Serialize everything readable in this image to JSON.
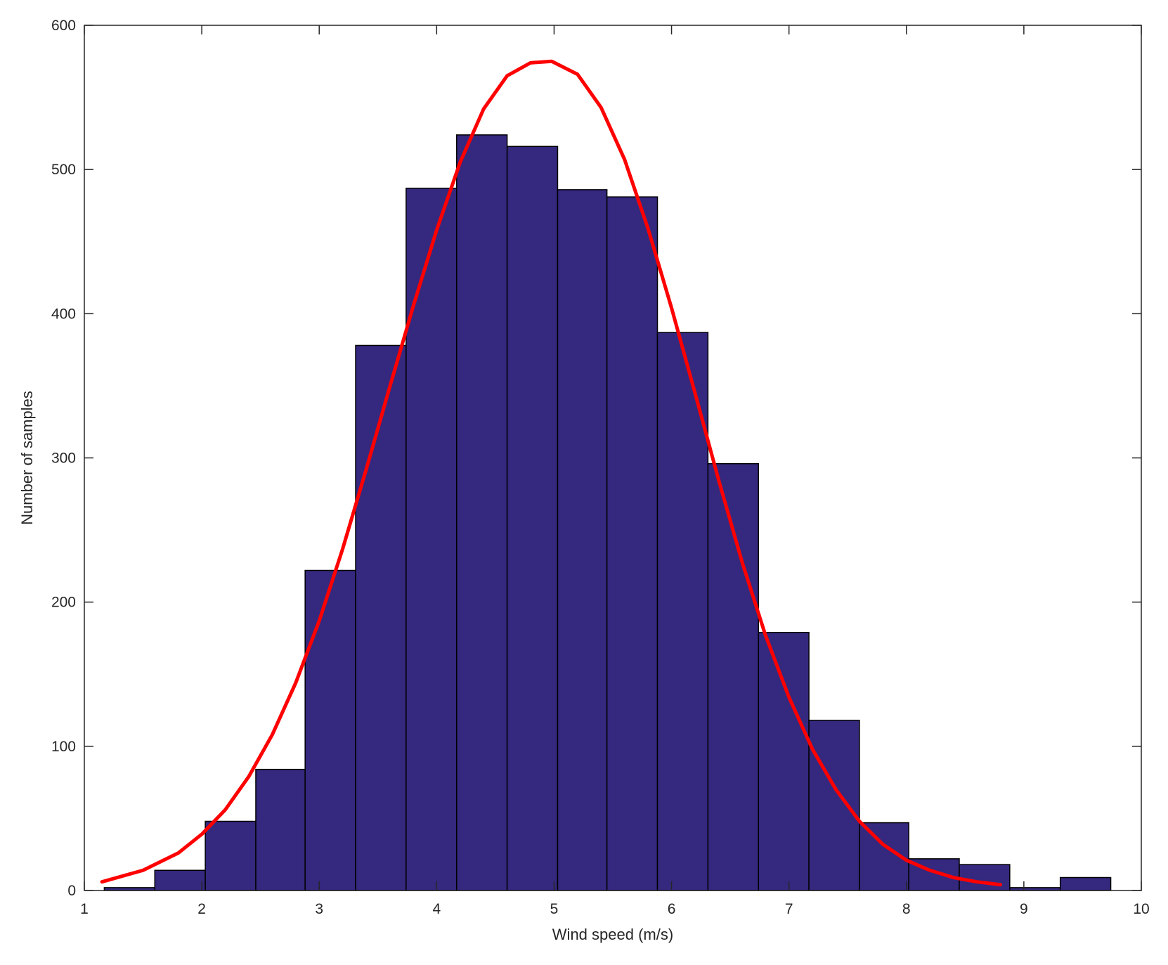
{
  "chart_data": {
    "type": "bar",
    "title": "",
    "xlabel": "Wind speed (m/s)",
    "ylabel": "Number of samples",
    "xlim": [
      1,
      10
    ],
    "ylim": [
      0,
      600
    ],
    "x_ticks": [
      1,
      2,
      3,
      4,
      5,
      6,
      7,
      8,
      9,
      10
    ],
    "y_ticks": [
      0,
      100,
      200,
      300,
      400,
      500,
      600
    ],
    "grid": false,
    "legend": "none",
    "bar_color": "#35287f",
    "bar_edge_color": "#000000",
    "curve_color": "#ff0000",
    "series": [
      {
        "type": "histogram",
        "bins": [
          {
            "x0": 1.17,
            "x1": 1.6,
            "count": 2
          },
          {
            "x0": 1.6,
            "x1": 2.03,
            "count": 14
          },
          {
            "x0": 2.03,
            "x1": 2.46,
            "count": 48
          },
          {
            "x0": 2.46,
            "x1": 2.88,
            "count": 84
          },
          {
            "x0": 2.88,
            "x1": 3.31,
            "count": 222
          },
          {
            "x0": 3.31,
            "x1": 3.74,
            "count": 378
          },
          {
            "x0": 3.74,
            "x1": 4.17,
            "count": 487
          },
          {
            "x0": 4.17,
            "x1": 4.6,
            "count": 524
          },
          {
            "x0": 4.6,
            "x1": 5.03,
            "count": 516
          },
          {
            "x0": 5.03,
            "x1": 5.45,
            "count": 486
          },
          {
            "x0": 5.45,
            "x1": 5.88,
            "count": 481
          },
          {
            "x0": 5.88,
            "x1": 6.31,
            "count": 387
          },
          {
            "x0": 6.31,
            "x1": 6.74,
            "count": 296
          },
          {
            "x0": 6.74,
            "x1": 7.17,
            "count": 179
          },
          {
            "x0": 7.17,
            "x1": 7.6,
            "count": 118
          },
          {
            "x0": 7.6,
            "x1": 8.02,
            "count": 47
          },
          {
            "x0": 8.02,
            "x1": 8.45,
            "count": 22
          },
          {
            "x0": 8.45,
            "x1": 8.88,
            "count": 18
          },
          {
            "x0": 8.88,
            "x1": 9.31,
            "count": 2
          },
          {
            "x0": 9.31,
            "x1": 9.74,
            "count": 9
          }
        ]
      },
      {
        "type": "line",
        "x": [
          1.15,
          1.5,
          1.8,
          2.0,
          2.2,
          2.4,
          2.6,
          2.8,
          3.0,
          3.2,
          3.4,
          3.6,
          3.8,
          4.0,
          4.2,
          4.4,
          4.6,
          4.8,
          4.98,
          5.2,
          5.4,
          5.6,
          5.8,
          6.0,
          6.2,
          6.4,
          6.6,
          6.8,
          7.0,
          7.2,
          7.4,
          7.6,
          7.8,
          8.0,
          8.2,
          8.4,
          8.6,
          8.8
        ],
        "y": [
          6,
          14,
          26,
          39,
          56,
          79,
          108,
          144,
          187,
          237,
          292,
          349,
          405,
          458,
          505,
          542,
          565,
          574,
          575,
          566,
          543,
          507,
          459,
          404,
          345,
          285,
          228,
          177,
          134,
          98,
          70,
          48,
          32,
          21,
          14,
          9,
          6,
          4
        ]
      }
    ]
  }
}
